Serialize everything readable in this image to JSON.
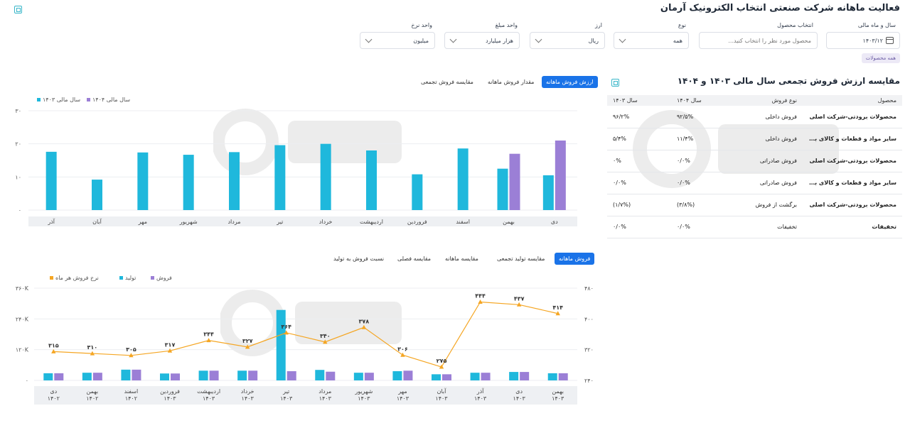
{
  "header": {
    "title": "فعالیت ماهانه شرکت صنعتی انتخاب الکترونیک آرمان"
  },
  "filters": {
    "fiscal": {
      "label": "سال و ماه مالی",
      "value": "۱۴۰۳/۱۲"
    },
    "product": {
      "label": "انتخاب محصول",
      "placeholder": "محصول مورد نظر را انتخاب کنید..."
    },
    "type": {
      "label": "نوع",
      "value": "همه"
    },
    "currency": {
      "label": "ارز",
      "value": "ریال"
    },
    "amount_unit": {
      "label": "واحد مبلغ",
      "value": "هزار میلیارد"
    },
    "rate_unit": {
      "label": "واحد نرخ",
      "value": "میلیون"
    },
    "chip": "همه محصولات"
  },
  "top_chart": {
    "tabs": [
      "ارزش فروش ماهانه",
      "مقدار فروش ماهانه",
      "مقایسه فروش تجمعی"
    ],
    "legend": [
      "سال مالی ۱۴۰۴",
      "سال مالی ۱۴۰۳"
    ]
  },
  "table": {
    "title": "مقایسه ارزش فروش تجمعی سال مالی ۱۴۰۳ و ۱۴۰۴",
    "headers": [
      "محصول",
      "نوع فروش",
      "سال ۱۴۰۴",
      "سال ۱۴۰۳"
    ],
    "rows": [
      [
        "محصولات برودتی-شرکت اصلی",
        "فروش داخلی",
        "۹۲/۵%",
        "۹۶/۲%"
      ],
      [
        "سایر مواد و قطعات و کالای بازرگانی...",
        "فروش داخلی",
        "۱۱/۴%",
        "۵/۴%"
      ],
      [
        "محصولات برودتی-شرکت اصلی",
        "فروش صادراتی",
        "۰/۰%",
        "۰%"
      ],
      [
        "سایر مواد و قطعات و کالای بازرگانی...",
        "فروش صادراتی",
        "۰/۰%",
        "۰/۰%"
      ],
      [
        "محصولات برودتی-شرکت اصلی",
        "برگشت از فروش",
        "(۳/۸%)",
        "(۱/۷%)"
      ],
      [
        "تخفیفات",
        "تخفیفات",
        "۰/۰%",
        "۰/۰%"
      ]
    ]
  },
  "bottom_chart": {
    "tabs": [
      "فروش ماهانه",
      "مقایسه تولید تجمعی",
      "مقایسه ماهانه",
      "مقایسه فصلی",
      "نسبت فروش به تولید"
    ],
    "legend": [
      "نرخ فروش هر ماه",
      "تولید",
      "فروش"
    ]
  },
  "chart_data": [
    {
      "type": "bar",
      "categories": [
        "دی",
        "بهمن",
        "اسفند",
        "فروردین",
        "اردیبهشت",
        "خرداد",
        "تیر",
        "مرداد",
        "شهریور",
        "مهر",
        "آبان",
        "آذر"
      ],
      "series": [
        {
          "name": "سال مالی ۱۴۰۳",
          "color": "#1fb8dc",
          "values": [
            10.5,
            12.5,
            18.6,
            10.8,
            18,
            20,
            19.6,
            17.5,
            16.7,
            17.4,
            9.2,
            17.6
          ]
        },
        {
          "name": "سال مالی ۱۴۰۴",
          "color": "#9b7fd6",
          "values": [
            21,
            17,
            null,
            null,
            null,
            null,
            null,
            null,
            null,
            null,
            null,
            null
          ]
        }
      ],
      "yticks": [
        "۰",
        "۱۰",
        "۲۰",
        "۳۰"
      ],
      "ylim": [
        0,
        30
      ],
      "grid": true,
      "legend_position": "top-left"
    },
    {
      "type": "bar",
      "categories": [
        "دی ۱۴۰۲",
        "بهمن ۱۴۰۲",
        "اسفند ۱۴۰۲",
        "فروردین ۱۴۰۳",
        "اردیبهشت ۱۴۰۳",
        "خرداد ۱۴۰۳",
        "تیر ۱۴۰۳",
        "مرداد ۱۴۰۳",
        "شهریور ۱۴۰۳",
        "مهر ۱۴۰۳",
        "آبان ۱۴۰۳",
        "آذر ۱۴۰۳",
        "دی ۱۴۰۳",
        "بهمن ۱۴۰۳"
      ],
      "cat_lines": [
        [
          "دی",
          "۱۴۰۲"
        ],
        [
          "بهمن",
          "۱۴۰۲"
        ],
        [
          "اسفند",
          "۱۴۰۲"
        ],
        [
          "فروردین",
          "۱۴۰۳"
        ],
        [
          "اردیبهشت",
          "۱۴۰۳"
        ],
        [
          "خرداد",
          "۱۴۰۳"
        ],
        [
          "تیر",
          "۱۴۰۳"
        ],
        [
          "مرداد",
          "۱۴۰۳"
        ],
        [
          "شهریور",
          "۱۴۰۳"
        ],
        [
          "مهر",
          "۱۴۰۳"
        ],
        [
          "آبان",
          "۱۴۰۳"
        ],
        [
          "آذر",
          "۱۴۰۳"
        ],
        [
          "دی",
          "۱۴۰۳"
        ],
        [
          "بهمن",
          "۱۴۰۳"
        ]
      ],
      "series": [
        {
          "name": "تولید",
          "color": "#1fb8dc",
          "axis": "left",
          "values": [
            28000,
            30000,
            42000,
            27000,
            38000,
            38000,
            275000,
            41000,
            30000,
            36000,
            24000,
            30000,
            33000,
            28000
          ]
        },
        {
          "name": "فروش",
          "color": "#9b7fd6",
          "axis": "left",
          "values": [
            28000,
            30000,
            42000,
            27000,
            38000,
            38000,
            36000,
            34000,
            30000,
            38000,
            24000,
            30000,
            33000,
            28000
          ]
        },
        {
          "name": "نرخ فروش هر ماه",
          "color": "#f5a623",
          "axis": "right",
          "type": "line",
          "values": [
            315,
            310,
            305,
            317,
            344,
            327,
            364,
            340,
            378,
            306,
            275,
            444,
            437,
            414
          ],
          "labels": [
            "۳۱۵",
            "۳۱۰",
            "۳۰۵",
            "۳۱۷",
            "۳۴۴",
            "۳۲۷",
            "۳۶۴",
            "۳۴۰",
            "۳۷۸",
            "۳۰۶",
            "۲۷۵",
            "۴۴۴",
            "۴۳۷",
            "۴۱۴"
          ]
        }
      ],
      "yticks_left": [
        "۰",
        "۱۲۰K",
        "۲۴۰K",
        "۳۶۰K"
      ],
      "ylim_left": [
        0,
        360000
      ],
      "yticks_right": [
        "۲۴۰",
        "۳۲۰",
        "۴۰۰",
        "۴۸۰"
      ],
      "ylim_right": [
        240,
        480
      ],
      "grid": true,
      "legend_position": "top-left"
    }
  ]
}
